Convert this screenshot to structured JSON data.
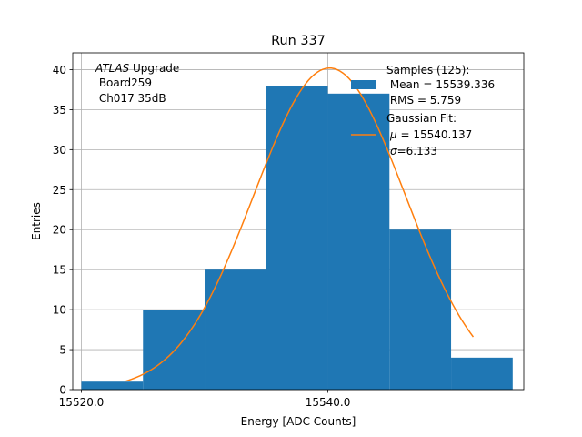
{
  "chart_data": {
    "type": "bar",
    "title": "Run 337",
    "xlabel": "Energy [ADC Counts]",
    "ylabel": "Entries",
    "xlim": [
      15519.3,
      15555.9
    ],
    "ylim": [
      0,
      42.1
    ],
    "xticks": [
      15520.0,
      15540.0
    ],
    "xtick_labels": [
      "15520.0",
      "15540.0"
    ],
    "yticks": [
      0,
      5,
      10,
      15,
      20,
      25,
      30,
      35,
      40
    ],
    "ytick_labels": [
      "0",
      "5",
      "10",
      "15",
      "20",
      "25",
      "30",
      "35",
      "40"
    ],
    "grid": true,
    "bin_edges": [
      15520.0,
      15525.0,
      15530.0,
      15535.0,
      15540.0,
      15545.0,
      15550.0,
      15555.0
    ],
    "counts": [
      1,
      10,
      15,
      38,
      37,
      20,
      4
    ],
    "gaussian_fit": {
      "mu": 15540.137,
      "sigma": 6.133,
      "amplitude": 40.2,
      "x_range": [
        15523.6,
        15551.8
      ]
    },
    "colors": {
      "bars": "#1f77b4",
      "fit": "#ff7f0e",
      "grid": "#b0b0b0"
    },
    "annotation": {
      "italic": "ATLAS",
      "rest": " Upgrade",
      "line2": " Board259",
      "line3": " Ch017 35dB"
    },
    "legend": {
      "placement": "top-right",
      "samples_title": "Samples (125):",
      "samples_mean": " Mean = 15539.336",
      "samples_rms": " RMS = 5.759",
      "fit_title": "Gaussian Fit:",
      "fit_mu_sym": "μ",
      "fit_mu_val": " = 15540.137",
      "fit_sigma_sym": "σ",
      "fit_sigma_val": "=6.133"
    }
  }
}
